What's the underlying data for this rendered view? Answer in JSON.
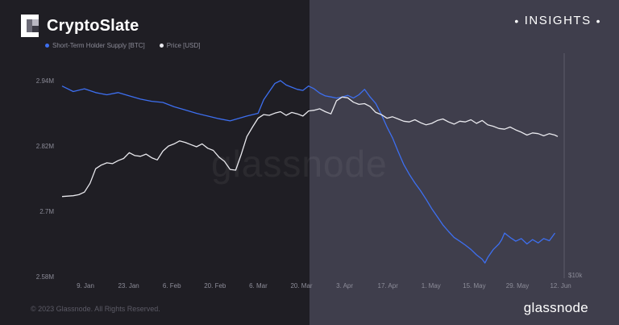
{
  "header": {
    "brand": "CryptoSlate",
    "insights": "INSIGHTS"
  },
  "watermark": "glassnode",
  "footer": {
    "copyright": "© 2023 Glassnode. All Rights Reserved.",
    "brand": "glassnode"
  },
  "colors": {
    "supply_line": "#3d6ff0",
    "price_line": "#e9e9ee",
    "left_panel_bg": "#1f1e24",
    "right_panel_bg": "#3f3e4c"
  },
  "chart_data": {
    "type": "line",
    "legend": [
      "Short-Term Holder Supply [BTC]",
      "Price [USD]"
    ],
    "legend_position": "top-left",
    "grid": false,
    "y_left": {
      "ticks": [
        "2.58M",
        "2.7M",
        "2.82M",
        "2.94M"
      ],
      "range": [
        2580000,
        2940000
      ]
    },
    "y_right": {
      "ticks": [
        "$10k"
      ]
    },
    "x_ticks": [
      "9. Jan",
      "23. Jan",
      "6. Feb",
      "20. Feb",
      "6. Mar",
      "20. Mar",
      "3. Apr",
      "17. Apr",
      "1. May",
      "15. May",
      "29. May",
      "12. Jun"
    ],
    "series": [
      {
        "name": "Short-Term Holder Supply [BTC]",
        "points": [
          [
            0,
            2.93
          ],
          [
            4,
            2.92
          ],
          [
            8,
            2.925
          ],
          [
            12,
            2.918
          ],
          [
            16,
            2.914
          ],
          [
            20,
            2.918
          ],
          [
            24,
            2.912
          ],
          [
            28,
            2.906
          ],
          [
            32,
            2.902
          ],
          [
            36,
            2.9
          ],
          [
            40,
            2.892
          ],
          [
            44,
            2.886
          ],
          [
            48,
            2.88
          ],
          [
            52,
            2.875
          ],
          [
            56,
            2.87
          ],
          [
            60,
            2.866
          ],
          [
            64,
            2.872
          ],
          [
            66,
            2.875
          ],
          [
            70,
            2.88
          ],
          [
            72,
            2.905
          ],
          [
            74,
            2.92
          ],
          [
            76,
            2.935
          ],
          [
            78,
            2.94
          ],
          [
            80,
            2.932
          ],
          [
            82,
            2.928
          ],
          [
            84,
            2.924
          ],
          [
            86,
            2.922
          ],
          [
            88,
            2.93
          ],
          [
            90,
            2.925
          ],
          [
            92,
            2.917
          ],
          [
            94,
            2.912
          ],
          [
            96,
            2.91
          ],
          [
            98,
            2.908
          ],
          [
            100,
            2.91
          ],
          [
            102,
            2.913
          ],
          [
            104,
            2.908
          ],
          [
            106,
            2.914
          ],
          [
            108,
            2.924
          ],
          [
            110,
            2.91
          ],
          [
            112,
            2.898
          ],
          [
            114,
            2.878
          ],
          [
            116,
            2.855
          ],
          [
            118,
            2.835
          ],
          [
            120,
            2.81
          ],
          [
            122,
            2.786
          ],
          [
            124,
            2.768
          ],
          [
            126,
            2.752
          ],
          [
            128,
            2.738
          ],
          [
            130,
            2.722
          ],
          [
            132,
            2.705
          ],
          [
            134,
            2.69
          ],
          [
            136,
            2.675
          ],
          [
            138,
            2.663
          ],
          [
            140,
            2.652
          ],
          [
            142,
            2.645
          ],
          [
            144,
            2.638
          ],
          [
            146,
            2.63
          ],
          [
            148,
            2.62
          ],
          [
            150,
            2.612
          ],
          [
            151,
            2.605
          ],
          [
            152,
            2.615
          ],
          [
            154,
            2.63
          ],
          [
            156,
            2.64
          ],
          [
            157,
            2.648
          ],
          [
            158,
            2.66
          ],
          [
            160,
            2.652
          ],
          [
            162,
            2.645
          ],
          [
            164,
            2.65
          ],
          [
            166,
            2.64
          ],
          [
            168,
            2.648
          ],
          [
            170,
            2.642
          ],
          [
            172,
            2.65
          ],
          [
            174,
            2.646
          ],
          [
            176,
            2.66
          ]
        ]
      },
      {
        "name": "Price [USD]",
        "points": [
          [
            0,
            16700
          ],
          [
            4,
            16800
          ],
          [
            6,
            16950
          ],
          [
            8,
            17300
          ],
          [
            10,
            18500
          ],
          [
            12,
            20500
          ],
          [
            14,
            21000
          ],
          [
            16,
            21300
          ],
          [
            18,
            21200
          ],
          [
            20,
            21600
          ],
          [
            22,
            21900
          ],
          [
            24,
            22700
          ],
          [
            26,
            22300
          ],
          [
            28,
            22200
          ],
          [
            30,
            22500
          ],
          [
            32,
            22000
          ],
          [
            34,
            21700
          ],
          [
            36,
            22900
          ],
          [
            38,
            23600
          ],
          [
            40,
            23900
          ],
          [
            42,
            24300
          ],
          [
            44,
            24100
          ],
          [
            46,
            23800
          ],
          [
            48,
            23500
          ],
          [
            50,
            23900
          ],
          [
            52,
            23300
          ],
          [
            54,
            23000
          ],
          [
            56,
            22100
          ],
          [
            58,
            21500
          ],
          [
            60,
            20400
          ],
          [
            62,
            20300
          ],
          [
            64,
            22500
          ],
          [
            66,
            24900
          ],
          [
            68,
            26200
          ],
          [
            70,
            27400
          ],
          [
            72,
            27900
          ],
          [
            74,
            27800
          ],
          [
            76,
            28100
          ],
          [
            78,
            28300
          ],
          [
            80,
            27800
          ],
          [
            82,
            28200
          ],
          [
            84,
            28000
          ],
          [
            86,
            27700
          ],
          [
            88,
            28400
          ],
          [
            90,
            28500
          ],
          [
            92,
            28700
          ],
          [
            94,
            28300
          ],
          [
            96,
            28000
          ],
          [
            98,
            29800
          ],
          [
            100,
            30300
          ],
          [
            102,
            30200
          ],
          [
            104,
            29600
          ],
          [
            106,
            29300
          ],
          [
            108,
            29400
          ],
          [
            110,
            29000
          ],
          [
            112,
            28200
          ],
          [
            114,
            27900
          ],
          [
            116,
            27400
          ],
          [
            118,
            27600
          ],
          [
            120,
            27300
          ],
          [
            122,
            27000
          ],
          [
            124,
            26900
          ],
          [
            126,
            27200
          ],
          [
            128,
            26800
          ],
          [
            130,
            26500
          ],
          [
            132,
            26700
          ],
          [
            134,
            27100
          ],
          [
            136,
            27300
          ],
          [
            138,
            26900
          ],
          [
            140,
            26600
          ],
          [
            142,
            27000
          ],
          [
            144,
            26900
          ],
          [
            146,
            27200
          ],
          [
            148,
            26700
          ],
          [
            150,
            27100
          ],
          [
            152,
            26500
          ],
          [
            154,
            26300
          ],
          [
            156,
            26000
          ],
          [
            158,
            25900
          ],
          [
            160,
            26200
          ],
          [
            162,
            25800
          ],
          [
            164,
            25500
          ],
          [
            166,
            25100
          ],
          [
            168,
            25400
          ],
          [
            170,
            25300
          ],
          [
            172,
            25000
          ],
          [
            174,
            25300
          ],
          [
            176,
            25100
          ],
          [
            177,
            24900
          ]
        ]
      }
    ]
  }
}
